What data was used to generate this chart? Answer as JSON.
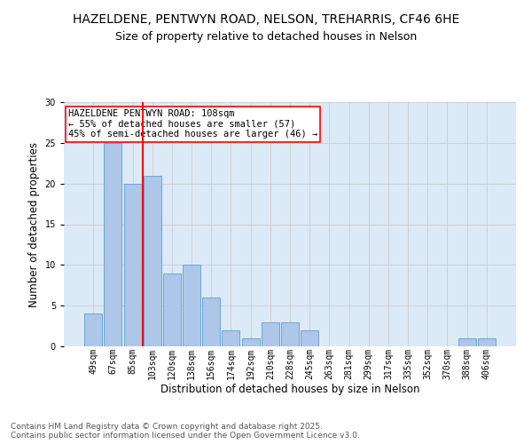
{
  "title_line1": "HAZELDENE, PENTWYN ROAD, NELSON, TREHARRIS, CF46 6HE",
  "title_line2": "Size of property relative to detached houses in Nelson",
  "xlabel": "Distribution of detached houses by size in Nelson",
  "ylabel": "Number of detached properties",
  "bar_labels": [
    "49sqm",
    "67sqm",
    "85sqm",
    "103sqm",
    "120sqm",
    "138sqm",
    "156sqm",
    "174sqm",
    "192sqm",
    "210sqm",
    "228sqm",
    "245sqm",
    "263sqm",
    "281sqm",
    "299sqm",
    "317sqm",
    "335sqm",
    "352sqm",
    "370sqm",
    "388sqm",
    "406sqm"
  ],
  "bar_values": [
    4,
    25,
    20,
    21,
    9,
    10,
    6,
    2,
    1,
    3,
    3,
    2,
    0,
    0,
    0,
    0,
    0,
    0,
    0,
    1,
    1
  ],
  "bar_color": "#aec6e8",
  "bar_edgecolor": "#5a9fd4",
  "vline_color": "red",
  "vline_pos": 2.5,
  "annotation_text": "HAZELDENE PENTWYN ROAD: 108sqm\n← 55% of detached houses are smaller (57)\n45% of semi-detached houses are larger (46) →",
  "annotation_box_color": "white",
  "annotation_box_edgecolor": "red",
  "grid_color": "#cccccc",
  "bg_color": "#dce9f7",
  "ylim": [
    0,
    30
  ],
  "yticks": [
    0,
    5,
    10,
    15,
    20,
    25,
    30
  ],
  "footer_line1": "Contains HM Land Registry data © Crown copyright and database right 2025.",
  "footer_line2": "Contains public sector information licensed under the Open Government Licence v3.0.",
  "title_fontsize": 10,
  "subtitle_fontsize": 9,
  "axis_label_fontsize": 8.5,
  "tick_fontsize": 7,
  "annotation_fontsize": 7.5,
  "footer_fontsize": 6.5
}
